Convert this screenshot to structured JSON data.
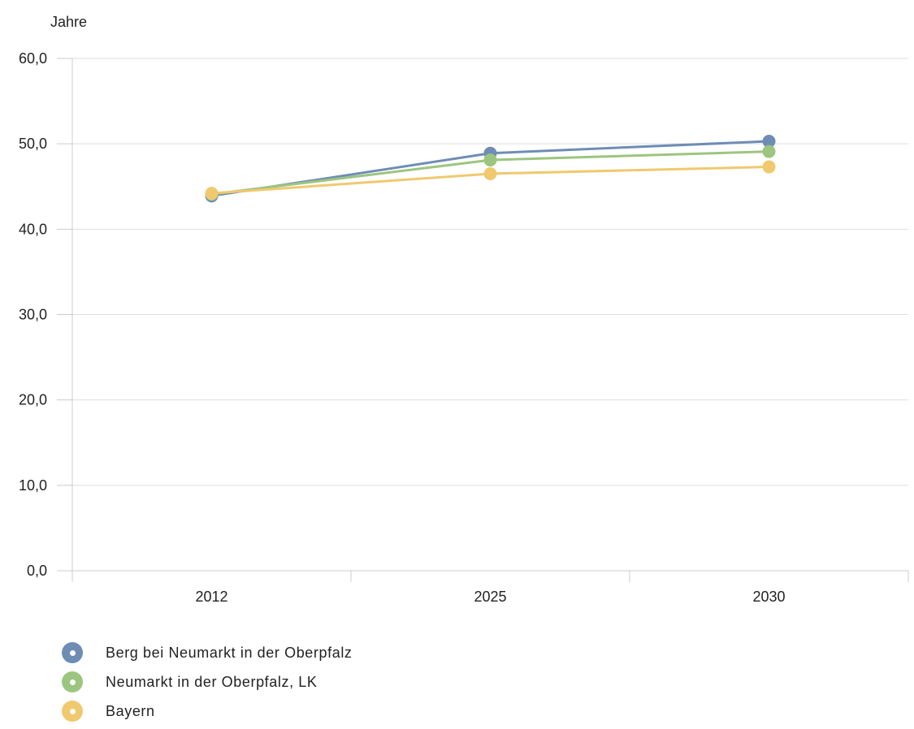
{
  "chart_data": {
    "type": "line",
    "title": "",
    "xlabel": "",
    "ylabel": "Jahre",
    "categories": [
      "2012",
      "2025",
      "2030"
    ],
    "ylim": [
      0,
      60
    ],
    "yticks": [
      "0,0",
      "10,0",
      "20,0",
      "30,0",
      "40,0",
      "50,0",
      "60,0"
    ],
    "grid": true,
    "legend_position": "bottom-left",
    "series": [
      {
        "name": "Berg bei Neumarkt in der Oberpfalz",
        "color": "#6e8db5",
        "values": [
          43.9,
          48.9,
          50.3
        ]
      },
      {
        "name": "Neumarkt in der Oberpfalz, LK",
        "color": "#9cc57f",
        "values": [
          44.1,
          48.1,
          49.1
        ]
      },
      {
        "name": "Bayern",
        "color": "#f0c96e",
        "values": [
          44.2,
          46.5,
          47.3
        ]
      }
    ]
  }
}
